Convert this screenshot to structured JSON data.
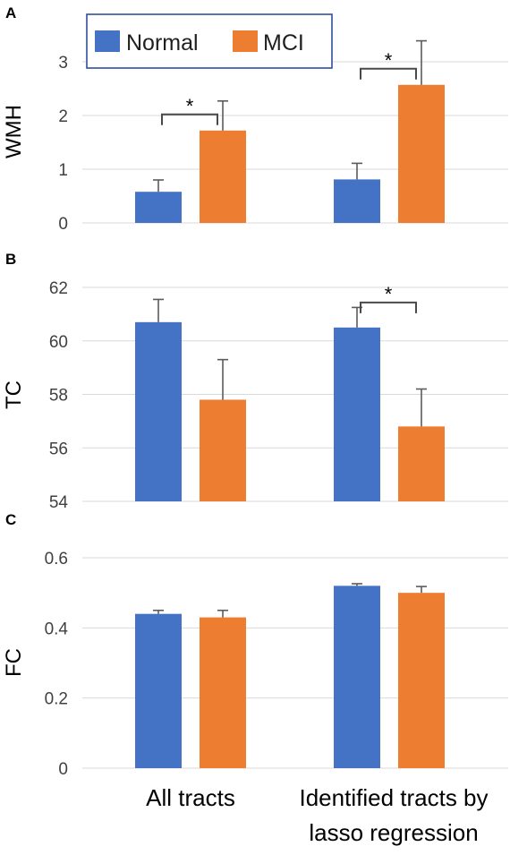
{
  "colors": {
    "normal": "#4472C4",
    "mci": "#ED7D31",
    "legend_border": "#2F4E9C"
  },
  "chart_data": [
    {
      "type": "bar",
      "panel": "A",
      "ylabel": "WMH",
      "categories": [
        "All tracts",
        "Identified tracts by lasso regression"
      ],
      "ylim": [
        0,
        3.4
      ],
      "yticks": [
        0,
        1,
        2,
        3
      ],
      "grid": true,
      "legend": {
        "placement": "top-left",
        "entries": [
          "Normal",
          "MCI"
        ]
      },
      "series": [
        {
          "name": "Normal",
          "values": [
            0.58,
            0.81
          ],
          "errors": [
            0.22,
            0.3
          ]
        },
        {
          "name": "MCI",
          "values": [
            1.72,
            2.57
          ],
          "errors": [
            0.55,
            0.82
          ]
        }
      ],
      "significance": [
        {
          "category": 0,
          "between": [
            "Normal",
            "MCI"
          ],
          "label": "*"
        },
        {
          "category": 1,
          "between": [
            "Normal",
            "MCI"
          ],
          "label": "*"
        }
      ]
    },
    {
      "type": "bar",
      "panel": "B",
      "ylabel": "TC",
      "categories": [
        "All tracts",
        "Identified tracts by lasso regression"
      ],
      "ylim": [
        54,
        62
      ],
      "yticks": [
        54,
        56,
        58,
        60,
        62
      ],
      "grid": true,
      "series": [
        {
          "name": "Normal",
          "values": [
            60.7,
            60.5
          ],
          "errors": [
            0.85,
            0.75
          ]
        },
        {
          "name": "MCI",
          "values": [
            57.8,
            56.8
          ],
          "errors": [
            1.5,
            1.4
          ]
        }
      ],
      "significance": [
        {
          "category": 1,
          "between": [
            "Normal",
            "MCI"
          ],
          "label": "*"
        }
      ]
    },
    {
      "type": "bar",
      "panel": "C",
      "ylabel": "FC",
      "categories": [
        "All tracts",
        "Identified tracts by lasso regression"
      ],
      "ylim": [
        0,
        0.6
      ],
      "yticks": [
        "0",
        "0.2",
        "0.4",
        "0.6"
      ],
      "grid": true,
      "series": [
        {
          "name": "Normal",
          "values": [
            0.44,
            0.52
          ],
          "errors": [
            0.01,
            0.006
          ]
        },
        {
          "name": "MCI",
          "values": [
            0.43,
            0.5
          ],
          "errors": [
            0.02,
            0.018
          ]
        }
      ],
      "significance": []
    }
  ],
  "category_labels": [
    {
      "lines": [
        "All tracts"
      ]
    },
    {
      "lines": [
        "Identified tracts by",
        "lasso regression"
      ]
    }
  ]
}
